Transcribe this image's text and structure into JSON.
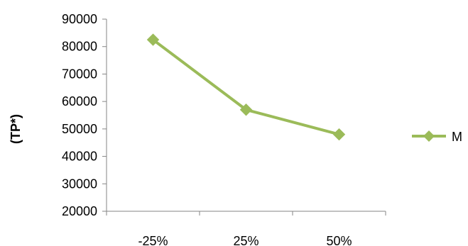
{
  "chart_data": {
    "type": "line",
    "categories": [
      "-25%",
      "25%",
      "50%"
    ],
    "series": [
      {
        "name": "M",
        "values": [
          82500,
          57000,
          48000
        ],
        "color": "#9bbb59",
        "marker": "diamond"
      }
    ],
    "xlabel": "",
    "ylabel": "(TP*)",
    "ylim": [
      20000,
      90000
    ],
    "yticks": [
      20000,
      30000,
      40000,
      50000,
      60000,
      70000,
      80000,
      90000
    ],
    "ytick_labels": [
      "20000",
      "30000",
      "40000",
      "50000",
      "60000",
      "70000",
      "80000",
      "90000"
    ],
    "grid": false,
    "legend_position": "right"
  }
}
